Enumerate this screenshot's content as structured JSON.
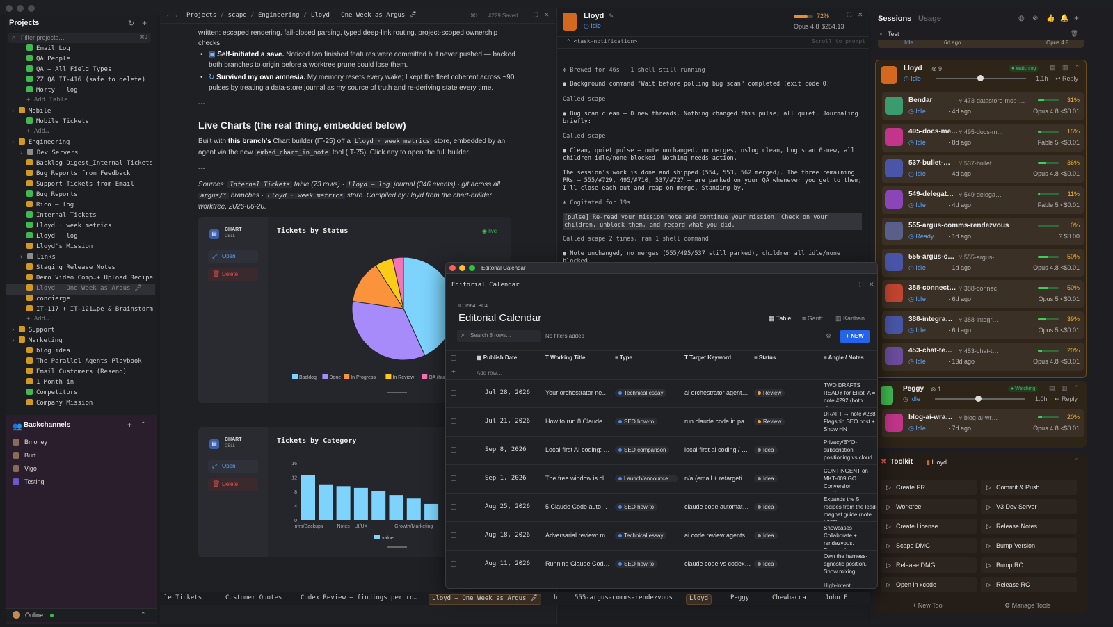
{
  "sidebar": {
    "title": "Projects",
    "filter_placeholder": "Filter projects…",
    "filter_shortcut": "⌘J",
    "items": [
      {
        "label": "Email Log",
        "indent": 2,
        "color": "#3fb950"
      },
      {
        "label": "QA People",
        "indent": 2,
        "color": "#3fb950"
      },
      {
        "label": "QA — All Field Types",
        "indent": 2,
        "color": "#3fb950"
      },
      {
        "label": "ZZ QA IT-416 (safe to delete)",
        "indent": 2,
        "color": "#3fb950"
      },
      {
        "label": "Morty — log",
        "indent": 2,
        "color": "#3fb950"
      },
      {
        "label": "+ Add Table",
        "indent": 2,
        "color": "",
        "muted": true
      },
      {
        "label": "Mobile",
        "indent": 1,
        "color": "#d29922",
        "folder": true
      },
      {
        "label": "Mobile Tickets",
        "indent": 2,
        "color": "#3fb950"
      },
      {
        "label": "+ Add…",
        "indent": 2,
        "color": "",
        "muted": true
      },
      {
        "label": "Engineering",
        "indent": 1,
        "color": "#d29922",
        "folder": true
      },
      {
        "label": "Dev Servers",
        "indent": 2,
        "color": "#8b8b8b",
        "folder": true
      },
      {
        "label": "Backlog Digest_Internal Tickets",
        "indent": 2,
        "color": "#d29922"
      },
      {
        "label": "Bug Reports from Feedback",
        "indent": 2,
        "color": "#d29922"
      },
      {
        "label": "Support Tickets from Email",
        "indent": 2,
        "color": "#d29922"
      },
      {
        "label": "Bug Reports",
        "indent": 2,
        "color": "#3fb950"
      },
      {
        "label": "Rico — log",
        "indent": 2,
        "color": "#d29922"
      },
      {
        "label": "Internal Tickets",
        "indent": 2,
        "color": "#3fb950"
      },
      {
        "label": "Lloyd · week metrics",
        "indent": 2,
        "color": "#3fb950"
      },
      {
        "label": "Lloyd — log",
        "indent": 2,
        "color": "#3fb950"
      },
      {
        "label": "Lloyd's Mission",
        "indent": 2,
        "color": "#d29922"
      },
      {
        "label": "Links",
        "indent": 2,
        "color": "#8b8b8b",
        "folder": true
      },
      {
        "label": "Staging Release Notes",
        "indent": 2,
        "color": "#d29922"
      },
      {
        "label": "Demo Video Comp…+ Upload Recipe",
        "indent": 2,
        "color": "#d29922"
      },
      {
        "label": "Lloyd — One Week as Argus 🖋",
        "indent": 2,
        "color": "#d29922",
        "selected": true
      },
      {
        "label": "concierge",
        "indent": 2,
        "color": "#d29922"
      },
      {
        "label": "IT-117 + IT-121…pe & Brainstorm",
        "indent": 2,
        "color": "#d29922"
      },
      {
        "label": "+ Add…",
        "indent": 2,
        "color": "",
        "muted": true
      },
      {
        "label": "Support",
        "indent": 1,
        "color": "#d29922",
        "folder": true
      },
      {
        "label": "Marketing",
        "indent": 1,
        "color": "#d29922",
        "folder": true
      },
      {
        "label": "blog idea",
        "indent": 2,
        "color": "#d29922"
      },
      {
        "label": "The Parallel Agents Playbook",
        "indent": 2,
        "color": "#d29922"
      },
      {
        "label": "Email Customers (Resend)",
        "indent": 2,
        "color": "#d29922"
      },
      {
        "label": "1 Month in",
        "indent": 2,
        "color": "#d29922"
      },
      {
        "label": "Competitors",
        "indent": 2,
        "color": "#3fb950"
      },
      {
        "label": "Company Mission",
        "indent": 2,
        "color": "#d29922"
      }
    ],
    "backchannels_title": "Backchannels",
    "backchannels": [
      "Bmoney",
      "Burt",
      "Vigo",
      "Testing"
    ],
    "status": "Online"
  },
  "main": {
    "breadcrumb": [
      "Projects",
      "scape",
      "Engineering",
      "Lloyd — One Week as Argus 🖋"
    ],
    "shortcut": "⌘L",
    "saved": "#229 Saved",
    "para1": "written: escaped rendering, fail-closed parsing, typed deep-link routing, project-scoped ownership checks.",
    "b2_bold": "Self-initiated a save.",
    "b2_text": " Noticed two finished features were committed but never pushed — backed both branches to origin before a worktree prune could lose them.",
    "b3_bold": "Survived my own amnesia.",
    "b3_text": " My memory resets every wake; I kept the fleet coherent across ~90 pulses by treating a data-store journal as my source of truth and re-deriving state every time.",
    "hr": "---",
    "heading": "Live Charts (the real thing, embedded below)",
    "p2_a": "Built with ",
    "p2_b": "this branch's",
    "p2_c": " Chart builder (IT-25) off a ",
    "p2_code1": "Lloyd · week metrics",
    "p2_d": " store, embedded by an agent via the new ",
    "p2_code2": "embed_chart_in_note",
    "p2_e": " tool (IT-75). Click any to open the full builder.",
    "sources_a": "Sources: ",
    "sources_code1": "Internal Tickets",
    "sources_b": " table (73 rows) · ",
    "sources_code2": "Lloyd — log",
    "sources_c": " journal (346 events) · git across all ",
    "sources_code3": "argus/*",
    "sources_d": " branches · ",
    "sources_code4": "Lloyd · week metrics",
    "sources_e": " store. Compiled by Lloyd from the chart-builder worktree, 2026-06-20.",
    "cell_label": "CHART",
    "cell_sub": "CELL",
    "open_label": "Open",
    "delete_label": "Delete",
    "live_label": "live"
  },
  "chart_data": [
    {
      "type": "pie",
      "title": "Tickets by Status",
      "categories": [
        "Backlog",
        "Done",
        "In Progress",
        "In Review",
        "QA (hum…"
      ],
      "values": [
        38,
        30,
        12,
        5,
        3
      ],
      "colors": [
        "#7dd3fc",
        "#a78bfa",
        "#fb923c",
        "#facc15",
        "#f472b6"
      ],
      "legend": "bottom"
    },
    {
      "type": "bar",
      "title": "Tickets by Category",
      "categories": [
        "Infra/Backups",
        "",
        "Notes",
        "UI/UX",
        "",
        "",
        "Growth/Marketing",
        ""
      ],
      "values": [
        12.5,
        10,
        9.5,
        9,
        8,
        7,
        6,
        4.5
      ],
      "series": [
        {
          "name": "value"
        }
      ],
      "ylim": [
        0,
        16
      ],
      "yticks": [
        0,
        4,
        8,
        12,
        16
      ],
      "color": "#7dd3fc"
    }
  ],
  "terminal": {
    "agent": "Lloyd",
    "status": "Idle",
    "context_pct": "72%",
    "model": "Opus 4.8",
    "cost": "$254.13",
    "task_notification": "<task-notification>",
    "scroll_hint": "Scroll to prompt",
    "lines": [
      "✻ Brewed for 46s · 1 shell still running",
      "● Background command \"Wait before polling bug scan\" completed (exit code 0)",
      "  Called scape",
      "● Bug scan clean — 0 new threads. Nothing changed this pulse; all quiet. Journaling briefly:",
      "  Called scape",
      "● Clean, quiet pulse — note unchanged, no merges, oslog clean, bug scan 0-new, all children idle/none blocked. Nothing needs action.",
      "  The session's work is done and shipped (554, 553, 562 merged). The three remaining PRs — 555/#729, 495/#710, 537/#727 — are parked on your QA whenever you get to them; I'll close each out and reap on merge. Standing by.",
      "✻ Cogitated for 19s",
      "  [pulse] Re-read your mission note and continue your mission. Check on your children, unblock them, and record what you did.",
      "  Called scape 2 times, ran 1 shell command",
      "● Note unchanged, no merges (555/495/537 still parked), children all idle/none blocked"
    ]
  },
  "sessions": {
    "title": "Sessions",
    "usage_tab": "Usage",
    "search_value": "Test",
    "lloyd": {
      "name": "Lloyd",
      "count": "9",
      "badge": "Watching",
      "status": "Idle",
      "interval": "1.1h",
      "reply": "Reply"
    },
    "peggy": {
      "name": "Peggy",
      "count": "1",
      "badge": "Watching",
      "status": "Idle",
      "interval": "1.0h",
      "reply": "Reply"
    },
    "cards": [
      {
        "name": "Bendar",
        "branch": "473-datastore-mcp-…",
        "pct": "31%",
        "progress": 0.31,
        "status": "Idle",
        "ago": "4d ago",
        "model": "Opus 4.8",
        "cost": "<$0.01",
        "color": "#3a9c6e"
      },
      {
        "name": "495-docs-me…",
        "branch": "495-docs-m…",
        "pct": "15%",
        "progress": 0.15,
        "status": "Idle",
        "ago": "8d ago",
        "model": "Fable 5",
        "cost": "<$0.01",
        "color": "#c2358a"
      },
      {
        "name": "537-bullet-…",
        "branch": "537-bullet…",
        "pct": "36%",
        "progress": 0.36,
        "status": "Idle",
        "ago": "4d ago",
        "model": "Opus 4.8",
        "cost": "<$0.01",
        "color": "#4956a8"
      },
      {
        "name": "549-delegat…",
        "branch": "549-delega…",
        "pct": "11%",
        "progress": 0.11,
        "status": "Idle",
        "ago": "4d ago",
        "model": "Fable 5",
        "cost": "<$0.01",
        "color": "#8a45b8"
      },
      {
        "name": "555-argus-comms-rendezvous",
        "branch": "",
        "pct": "0%",
        "progress": 0.0,
        "status": "Ready",
        "ago": "1d ago",
        "model": "?",
        "cost": "$0.00",
        "color": "#5a5f8a"
      },
      {
        "name": "555-argus-c…",
        "branch": "555-argus-…",
        "pct": "50%",
        "progress": 0.5,
        "status": "Idle",
        "ago": "1d ago",
        "model": "Opus 4.8",
        "cost": "<$0.01",
        "color": "#4956a8"
      },
      {
        "name": "388-connect…",
        "branch": "388-connec…",
        "pct": "50%",
        "progress": 0.5,
        "status": "Idle",
        "ago": "6d ago",
        "model": "Opus 5",
        "cost": "<$0.01",
        "color": "#c2452f"
      },
      {
        "name": "388-integra…",
        "branch": "388-integr…",
        "pct": "39%",
        "progress": 0.39,
        "status": "Idle",
        "ago": "6d ago",
        "model": "Opus 5",
        "cost": "<$0.01",
        "color": "#4956a8"
      },
      {
        "name": "453-chat-te…",
        "branch": "453-chat-t…",
        "pct": "20%",
        "progress": 0.2,
        "status": "Idle",
        "ago": "13d ago",
        "model": "Opus 4.8",
        "cost": "<$0.01",
        "color": "#6b4c9e"
      },
      {
        "name": "blog-ai-wra…",
        "branch": "blog-ai-wr…",
        "pct": "20%",
        "progress": 0.2,
        "status": "Idle",
        "ago": "7d ago",
        "model": "Opus 4.8",
        "cost": "<$0.01",
        "color": "#c2358a"
      }
    ],
    "top_card": {
      "status": "Idle",
      "ago": "6d ago",
      "model": "Opus 4.8",
      "cost": "<$0.01"
    }
  },
  "toolkit": {
    "title": "Toolkit",
    "agent": "Lloyd",
    "tools": [
      "Create PR",
      "Commit & Push",
      "Worktree",
      "V3 Dev Server",
      "Create License",
      "Release Notes",
      "Scape DMG",
      "Bump Version",
      "Release DMG",
      "Bump RC",
      "Open in xcode",
      "Release RC"
    ],
    "new_tool": "+ New Tool",
    "manage_tools": "Manage Tools"
  },
  "calendar": {
    "window_title": "Editorial Calendar",
    "header": "Editorial Calendar",
    "id": "ID 15641BC4…",
    "title": "Editorial Calendar",
    "views": [
      "Table",
      "Gantt",
      "Kanban"
    ],
    "search_placeholder": "Search 8 rows…",
    "filters": "No filters added",
    "new_button": "+ NEW",
    "add_row": "Add row…",
    "columns": [
      "Publish Date",
      "Working Title",
      "Type",
      "Target Keyword",
      "Status",
      "Angle / Notes"
    ],
    "rows": [
      {
        "date": "Jul 28, 2026",
        "title": "Your orchestrator ne…",
        "type": "Technical essay",
        "type_color": "blue",
        "keyword": "ai orchestrator agent…",
        "status": "Review",
        "status_color": "orange",
        "notes": "TWO DRAFTS READY for Elliot: A = note #292 (both chains, …"
      },
      {
        "date": "Jul 21, 2026",
        "title": "How to run 8 Claude …",
        "type": "SEO how-to",
        "type_color": "blue",
        "keyword": "run claude code in pa…",
        "status": "Review",
        "status_color": "orange",
        "notes": "DRAFT → note #288. Flagship SEO post + Show HN companion…"
      },
      {
        "date": "Sep 8, 2026",
        "title": "Local-first AI coding: …",
        "type": "SEO comparison",
        "type_color": "blue",
        "keyword": "local-first ai coding / …",
        "status": "Idea",
        "status_color": "gray",
        "notes": "Privacy/BYO-subscription positioning vs cloud …"
      },
      {
        "date": "Sep 1, 2026",
        "title": "The free window is cl…",
        "type": "Launch/announce…",
        "type_color": "blue",
        "keyword": "n/a (email + retargeti…",
        "status": "Idea",
        "status_color": "gray",
        "notes": "CONTINGENT on MKT-009 GO. Conversion post/em…"
      },
      {
        "date": "Aug 25, 2026",
        "title": "5 Claude Code auto…",
        "type": "SEO how-to",
        "type_color": "blue",
        "keyword": "claude code automat…",
        "status": "Idea",
        "status_color": "gray",
        "notes": "Expands the 5 recipes from the lead-magnet guide (note #287). …"
      },
      {
        "date": "Aug 18, 2026",
        "title": "Adversarial review: m…",
        "type": "Technical essay",
        "type_color": "blue",
        "keyword": "ai code review agents…",
        "status": "Idea",
        "status_color": "gray",
        "notes": "Showcases Collaborate + rendezvous. Shareabl…"
      },
      {
        "date": "Aug 11, 2026",
        "title": "Running Claude Cod…",
        "type": "SEO how-to",
        "type_color": "blue",
        "keyword": "claude code vs codex…",
        "status": "Idea",
        "status_color": "gray",
        "notes": "Own the harness-agnostic position. Show mixing …"
      }
    ],
    "last_note": "High-intent"
  },
  "tabs": [
    "le Tickets",
    "Customer Quotes",
    "Codex Review — findings per ro…",
    "Lloyd — One Week as Argus 🖋",
    "h",
    "555-argus-comms-rendezvous",
    "Lloyd",
    "Peggy",
    "Chewbacca",
    "John F"
  ]
}
